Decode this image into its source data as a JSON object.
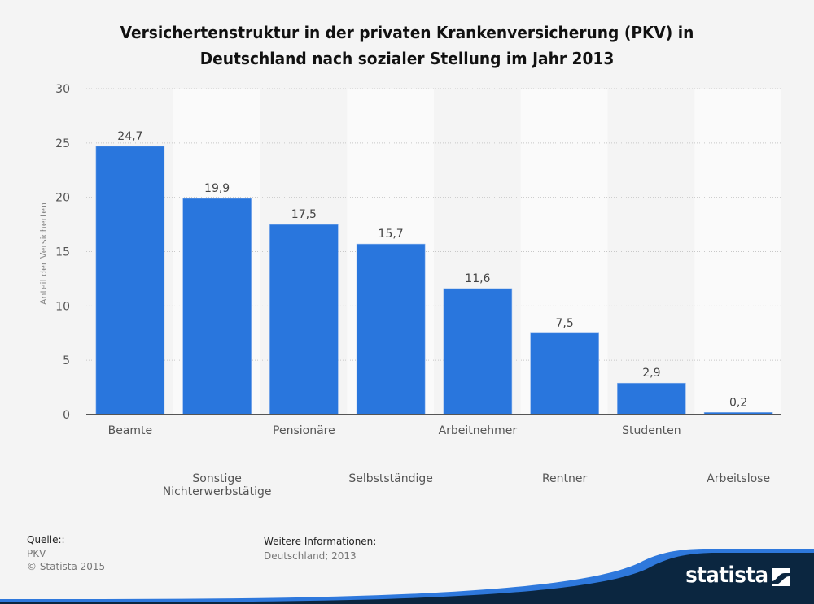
{
  "title": {
    "line1": "Versichertenstruktur in der privaten Krankenversicherung (PKV) in",
    "line2": "Deutschland nach sozialer Stellung im Jahr 2013"
  },
  "chart_data": {
    "type": "bar",
    "title": "Versichertenstruktur in der privaten Krankenversicherung (PKV) in Deutschland nach sozialer Stellung im Jahr 2013",
    "xlabel": "",
    "ylabel": "Anteil der Versicherten",
    "ylim": [
      0,
      30
    ],
    "yticks": [
      0,
      5,
      10,
      15,
      20,
      25,
      30
    ],
    "grid": true,
    "categories": [
      "Beamte",
      "Sonstige Nichterwerbstätige",
      "Pensionäre",
      "Selbstständige",
      "Arbeitnehmer",
      "Rentner",
      "Studenten",
      "Arbeitslose"
    ],
    "category_lines": [
      [
        "Beamte"
      ],
      [
        "Sonstige",
        "Nichterwerbstätige"
      ],
      [
        "Pensionäre"
      ],
      [
        "Selbstständige"
      ],
      [
        "Arbeitnehmer"
      ],
      [
        "Rentner"
      ],
      [
        "Studenten"
      ],
      [
        "Arbeitslose"
      ]
    ],
    "values": [
      24.7,
      19.9,
      17.5,
      15.7,
      11.6,
      7.5,
      2.9,
      0.2
    ],
    "value_labels": [
      "24,7",
      "19,9",
      "17,5",
      "15,7",
      "11,6",
      "7,5",
      "2,9",
      "0,2"
    ],
    "colors": {
      "bar": "#2976dd",
      "stripe": "#fafafa",
      "grid": "#c8c8c8",
      "axis": "#555555"
    }
  },
  "footer": {
    "source_label": "Quelle::",
    "source_value": "PKV",
    "copyright": "© Statista 2015",
    "info_label": "Weitere Informationen:",
    "info_value": "Deutschland; 2013"
  },
  "logo": {
    "text": "statista",
    "bg": "#0b2640",
    "accent": "#2e78dc"
  }
}
